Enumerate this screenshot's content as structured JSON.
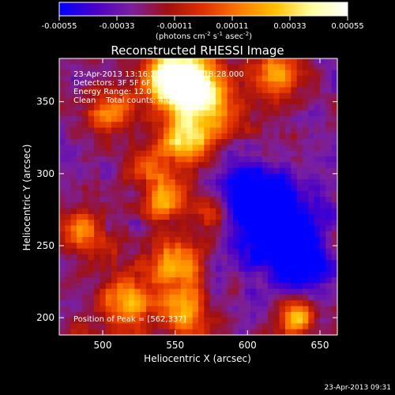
{
  "chart_data": {
    "type": "heatmap",
    "title": "Reconstructed RHESSI Image",
    "xlabel": "Heliocentric X (arcsec)",
    "ylabel": "Heliocentric Y (arcsec)",
    "xlim": [
      470,
      662
    ],
    "ylim": [
      188,
      380
    ],
    "x_ticks": [
      500,
      550,
      600,
      650
    ],
    "y_ticks": [
      200,
      250,
      300,
      350
    ],
    "colorbar": {
      "min": -0.00055,
      "max": 0.00055,
      "ticks": [
        "-0.00055",
        "-0.00033",
        "-0.00011",
        "0.00011",
        "0.00033",
        "0.00055"
      ],
      "label_main": "(photons cm",
      "label_exp1": "-2",
      "label_mid": " s",
      "label_exp2": "-1",
      "label_after": " asec",
      "label_exp3": "-2",
      "label_end": ")",
      "colors": [
        "#0000ff",
        "#4a00c8",
        "#7a20a0",
        "#a01010",
        "#e03000",
        "#ff7a00",
        "#ffc000",
        "#ffffa0",
        "#ffffff"
      ]
    },
    "grid": false,
    "annotations": [
      "23-Apr-2013 13:16:20.000 to 13:18:28.000",
      "Detectors: 3F 5F 6F 7F 8F 9F, Att 0",
      "Energy Range: 12.0 - 25.0 keV",
      "Clean    Total counts: 4.0E+03"
    ],
    "peak_label": "Position of Peak = [562,337]",
    "peak_position": [
      562,
      337
    ],
    "timestamp": "23-Apr-2013 09:31",
    "grid_size": 48,
    "intensity_rows": [
      [
        0.15,
        0.16,
        0.18,
        0.2,
        0.24,
        0.3,
        0.42,
        0.55,
        0.68,
        0.8,
        0.88,
        0.92,
        0.95,
        0.94,
        0.93,
        0.92,
        0.92,
        0.93,
        0.95,
        0.97,
        0.98,
        0.99,
        0.98,
        0.94,
        0.9,
        0.86,
        0.84,
        0.82,
        0.82,
        0.83,
        0.84,
        0.86,
        0.88,
        0.9,
        0.91,
        0.92,
        0.93,
        0.94,
        0.92,
        0.88,
        0.82,
        0.76,
        0.7,
        0.66,
        0.62,
        0.6,
        0.58,
        0.56
      ]
    ]
  }
}
